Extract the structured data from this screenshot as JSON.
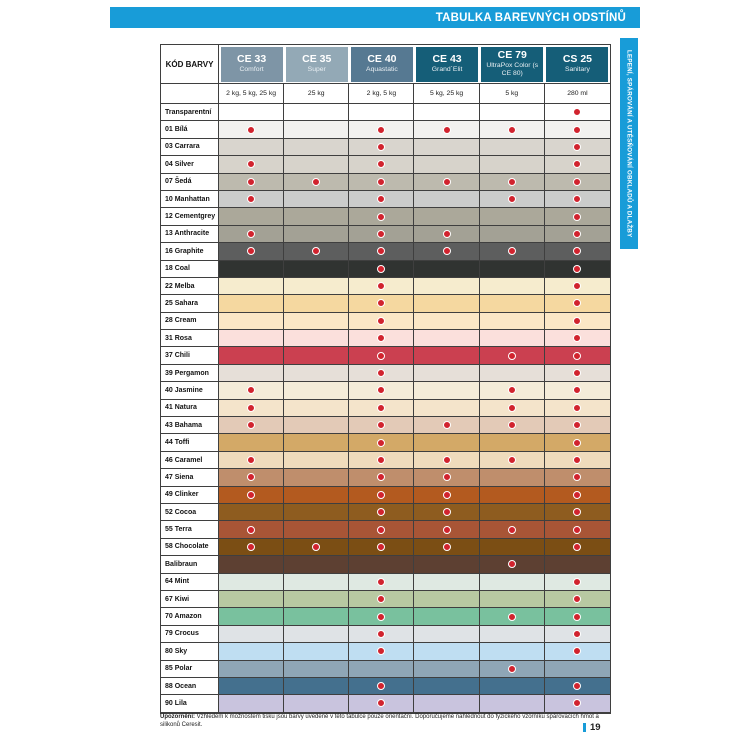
{
  "page": {
    "top_bar_title": "TABULKA BAREVNÝCH ODSTÍNŮ",
    "side_tab": "LEPENÍ, SPÁROVÁNÍ A UTĚSŇOVÁNÍ OBKLADŮ A DLAŽBY",
    "footnote_label": "Upozornění:",
    "footnote_text": " Vzhledem k možnostem tisku jsou barvy uvedené v této tabulce pouze orientační. Doporučujeme nahlédnout do fyzického vzorníku spárovacích hmot a silikonů Ceresit.",
    "page_number": "19",
    "accent_blue": "#189cd8",
    "dot_color": "#d1232e"
  },
  "table": {
    "code_header": "KÓD BARVY",
    "columns": [
      {
        "code": "CE 33",
        "name": "Comfort",
        "packaging": "2 kg, 5 kg, 25 kg",
        "header_bg": "#7e95a6"
      },
      {
        "code": "CE 35",
        "name": "Super",
        "packaging": "25 kg",
        "header_bg": "#93a9b6"
      },
      {
        "code": "CE 40",
        "name": "Aquastatic",
        "packaging": "2 kg, 5 kg",
        "header_bg": "#567992"
      },
      {
        "code": "CE 43",
        "name": "Grand´Elit",
        "packaging": "5 kg, 25 kg",
        "header_bg": "#155e78"
      },
      {
        "code": "CE 79",
        "name": "UltraPox Color (s CE 80)",
        "packaging": "5 kg",
        "header_bg": "#155e78"
      },
      {
        "code": "CS 25",
        "name": "Sanitary",
        "packaging": "280 ml",
        "header_bg": "#155e78"
      }
    ],
    "rows": [
      {
        "label": "Transparentní",
        "color": "#ffffff",
        "dots": [
          0,
          0,
          0,
          0,
          0,
          1
        ]
      },
      {
        "label": "01 Bílá",
        "color": "#f2f1ef",
        "dots": [
          1,
          0,
          1,
          1,
          1,
          1
        ]
      },
      {
        "label": "03 Carrara",
        "color": "#d9d5ce",
        "dots": [
          0,
          0,
          1,
          0,
          0,
          1
        ]
      },
      {
        "label": "04 Silver",
        "color": "#d7d3cb",
        "dots": [
          1,
          0,
          1,
          0,
          0,
          1
        ]
      },
      {
        "label": "07 Šedá",
        "color": "#bdbaae",
        "dots": [
          1,
          1,
          1,
          1,
          1,
          1
        ]
      },
      {
        "label": "10 Manhattan",
        "color": "#cbcccb",
        "dots": [
          1,
          0,
          1,
          0,
          1,
          1
        ]
      },
      {
        "label": "12 Cementgrey",
        "color": "#aba89a",
        "dots": [
          0,
          0,
          1,
          0,
          0,
          1
        ]
      },
      {
        "label": "13 Anthracite",
        "color": "#a3a195",
        "dots": [
          1,
          0,
          1,
          1,
          0,
          1
        ]
      },
      {
        "label": "16 Graphite",
        "color": "#5d5e5e",
        "dots": [
          1,
          1,
          1,
          1,
          1,
          1
        ]
      },
      {
        "label": "18 Coal",
        "color": "#303331",
        "dots": [
          0,
          0,
          1,
          0,
          0,
          1
        ]
      },
      {
        "label": "22 Melba",
        "color": "#f6ecce",
        "dots": [
          0,
          0,
          1,
          0,
          0,
          1
        ]
      },
      {
        "label": "25 Sahara",
        "color": "#f5d8a0",
        "dots": [
          0,
          0,
          1,
          0,
          0,
          1
        ]
      },
      {
        "label": "28 Cream",
        "color": "#fbe7c6",
        "dots": [
          0,
          0,
          1,
          0,
          0,
          1
        ]
      },
      {
        "label": "31 Rosa",
        "color": "#fbe0dc",
        "dots": [
          0,
          0,
          1,
          0,
          0,
          1
        ]
      },
      {
        "label": "37 Chili",
        "color": "#cb4050",
        "dots": [
          0,
          0,
          1,
          0,
          1,
          1
        ]
      },
      {
        "label": "39 Pergamon",
        "color": "#e6dfd8",
        "dots": [
          0,
          0,
          1,
          0,
          0,
          1
        ]
      },
      {
        "label": "40 Jasmine",
        "color": "#f4ecd9",
        "dots": [
          1,
          0,
          1,
          0,
          1,
          1
        ]
      },
      {
        "label": "41 Natura",
        "color": "#f4e4cb",
        "dots": [
          1,
          0,
          1,
          0,
          1,
          1
        ]
      },
      {
        "label": "43 Bahama",
        "color": "#e3cab7",
        "dots": [
          1,
          0,
          1,
          1,
          1,
          1
        ]
      },
      {
        "label": "44 Toffi",
        "color": "#d3a967",
        "dots": [
          0,
          0,
          1,
          0,
          0,
          1
        ]
      },
      {
        "label": "46 Caramel",
        "color": "#efdbbc",
        "dots": [
          1,
          0,
          1,
          1,
          1,
          1
        ]
      },
      {
        "label": "47 Siena",
        "color": "#bf8e6c",
        "dots": [
          1,
          0,
          1,
          1,
          0,
          1
        ]
      },
      {
        "label": "49 Clinker",
        "color": "#b35a1f",
        "dots": [
          1,
          0,
          1,
          1,
          0,
          1
        ]
      },
      {
        "label": "52 Cocoa",
        "color": "#8e5c1f",
        "dots": [
          0,
          0,
          1,
          1,
          0,
          1
        ]
      },
      {
        "label": "55 Terra",
        "color": "#a85536",
        "dots": [
          1,
          0,
          1,
          1,
          1,
          1
        ]
      },
      {
        "label": "58 Chocolate",
        "color": "#7b4e14",
        "dots": [
          1,
          1,
          1,
          1,
          0,
          1
        ]
      },
      {
        "label": "Balibraun",
        "color": "#5d4032",
        "dots": [
          0,
          0,
          0,
          0,
          1,
          0
        ]
      },
      {
        "label": "64 Mint",
        "color": "#dfe9e2",
        "dots": [
          0,
          0,
          1,
          0,
          0,
          1
        ]
      },
      {
        "label": "67 Kiwi",
        "color": "#b8c9a2",
        "dots": [
          0,
          0,
          1,
          0,
          0,
          1
        ]
      },
      {
        "label": "70 Amazon",
        "color": "#79c19e",
        "dots": [
          0,
          0,
          1,
          0,
          1,
          1
        ]
      },
      {
        "label": "79 Crocus",
        "color": "#dfe3e6",
        "dots": [
          0,
          0,
          1,
          0,
          0,
          1
        ]
      },
      {
        "label": "80 Sky",
        "color": "#bfdef2",
        "dots": [
          0,
          0,
          1,
          0,
          0,
          1
        ]
      },
      {
        "label": "85 Polar",
        "color": "#8fa6b6",
        "dots": [
          0,
          0,
          0,
          0,
          1,
          0
        ]
      },
      {
        "label": "88 Ocean",
        "color": "#44708e",
        "dots": [
          0,
          0,
          1,
          0,
          0,
          1
        ]
      },
      {
        "label": "90 Lila",
        "color": "#c9c4de",
        "dots": [
          0,
          0,
          1,
          0,
          0,
          1
        ]
      }
    ]
  }
}
